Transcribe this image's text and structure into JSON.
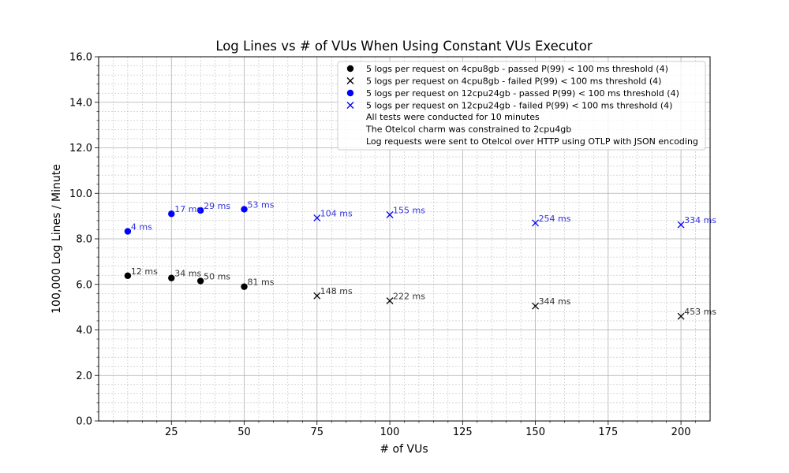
{
  "chart_data": {
    "type": "scatter",
    "title": "Log Lines vs # of VUs When Using Constant VUs Executor",
    "xlabel": "# of VUs",
    "ylabel": "100,000 Log Lines / Minute",
    "xlim": [
      0,
      210
    ],
    "ylim": [
      0,
      16
    ],
    "x_ticks": [
      25,
      50,
      75,
      100,
      125,
      150,
      175,
      200
    ],
    "x_tick_labels": [
      "25",
      "50",
      "75",
      "100",
      "125",
      "150",
      "175",
      "200"
    ],
    "y_ticks": [
      0,
      2,
      4,
      6,
      8,
      10,
      12,
      14,
      16
    ],
    "y_tick_labels": [
      "0.0",
      "2.0",
      "4.0",
      "6.0",
      "8.0",
      "10.0",
      "12.0",
      "14.0",
      "16.0"
    ],
    "grid": "major and minor",
    "legend_position": "top-right",
    "series": [
      {
        "name": "5 logs per request on 4cpu8gb - passed P(99) < 100 ms threshold (4)",
        "marker": "circle",
        "color": "#000000",
        "x": [
          10,
          25,
          35,
          50
        ],
        "y": [
          6.38,
          6.28,
          6.15,
          5.9
        ],
        "labels": [
          "12 ms",
          "34 ms",
          "50 ms",
          "81 ms"
        ]
      },
      {
        "name": "5 logs per request on 4cpu8gb - failed P(99) < 100 ms threshold (4)",
        "marker": "x",
        "color": "#000000",
        "x": [
          75,
          100,
          150,
          200
        ],
        "y": [
          5.5,
          5.28,
          5.05,
          4.6
        ],
        "labels": [
          "148 ms",
          "222 ms",
          "344 ms",
          "453 ms"
        ]
      },
      {
        "name": "5 logs per request on 12cpu24gb - passed P(99) < 100 ms threshold (4)",
        "marker": "circle",
        "color": "#0000ff",
        "x": [
          10,
          25,
          35,
          50
        ],
        "y": [
          8.33,
          9.1,
          9.25,
          9.3
        ],
        "labels": [
          "4 ms",
          "17 ms",
          "29 ms",
          "53 ms"
        ]
      },
      {
        "name": "5 logs per request on 12cpu24gb - failed P(99) < 100 ms threshold (4)",
        "marker": "x",
        "color": "#0000ff",
        "x": [
          75,
          100,
          150,
          200
        ],
        "y": [
          8.92,
          9.06,
          8.7,
          8.62
        ],
        "labels": [
          "104 ms",
          "155 ms",
          "254 ms",
          "334 ms"
        ]
      }
    ],
    "legend_notes": [
      "All tests were conducted for 10 minutes",
      "The Otelcol charm was constrained to 2cpu4gb",
      "Log requests were sent to Otelcol over HTTP using OTLP with JSON encoding"
    ],
    "label_colors": {
      "black": "#333333",
      "blue": "#3333dd"
    }
  }
}
